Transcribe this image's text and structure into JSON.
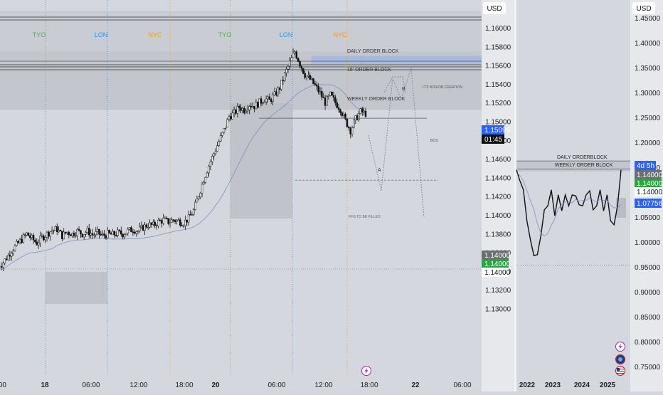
{
  "left_pane": {
    "currency_label": "USD",
    "price_ticks": [
      "1.16000",
      "1.15800",
      "1.15600",
      "1.15400",
      "1.15200",
      "1.15000",
      "1.14800",
      "1.14600",
      "1.14400",
      "1.14200",
      "1.14000",
      "1.13800",
      "1.13600",
      "1.13400",
      "1.13200",
      "1.13000"
    ],
    "time_labels": [
      ":00",
      "18",
      "06:00",
      "12:00",
      "18:00",
      "20",
      "06:00",
      "12:00",
      "18:00",
      "22",
      "06:00"
    ],
    "session_labels": [
      {
        "text": "TYO",
        "color": "#4caf50"
      },
      {
        "text": "LON",
        "color": "#2196f3"
      },
      {
        "text": "NYC",
        "color": "#ff9800"
      },
      {
        "text": "TYO",
        "color": "#4caf50"
      },
      {
        "text": "LON",
        "color": "#2196f3"
      },
      {
        "text": "NYC",
        "color": "#ff9800"
      }
    ],
    "annotations": {
      "daily_order_block": "DAILY ORDER BLOCK",
      "order_block_15": "15' ORDER BLOCK",
      "ltf_bos": "LTF BOS/OB CREATION",
      "weekly_order_block": "WEEKLY ORDER BLOCK",
      "bos": "BOS",
      "path_a": "A",
      "path_b": "B",
      "ffg": "FFG TO BE FILLED"
    },
    "badges": {
      "current_price": "1.15099",
      "countdown": "01:45",
      "grey": "1.14000",
      "green": "1.14000",
      "white": "1.14000"
    }
  },
  "right_pane": {
    "currency_label": "USD",
    "price_ticks": [
      "1.45000",
      "1.40000",
      "1.35000",
      "1.30000",
      "1.25000",
      "1.20000",
      "1.15000",
      "1.10000",
      "1.05000",
      "1.00000",
      "0.95000",
      "0.90000",
      "0.85000",
      "0.80000",
      "0.75000"
    ],
    "year_labels": [
      "2022",
      "2023",
      "2024",
      "2025"
    ],
    "annotations": {
      "daily_orderblock": "DAILY ORDERBLOCK",
      "weekly_order_block": "WEEKLY ORDER BLOCK"
    },
    "badges": {
      "countdown": "4d 5h",
      "grey": "1.14000",
      "green": "1.14000",
      "white": "1.14000",
      "blue": "1.07756"
    }
  },
  "colors": {
    "background": "#d3d6dc",
    "candle": "#111111",
    "tyo": "#4caf50",
    "lon": "#2196f3",
    "nyc": "#ff9800",
    "accent_blue": "#2962ff",
    "green_badge": "#26a641"
  },
  "chart_data": [
    {
      "type": "candlestick",
      "symbol_currency": "USD",
      "timeframe_note": "intraday",
      "ylim": [
        1.129,
        1.163
      ],
      "price_path": [
        1.1345,
        1.1352,
        1.136,
        1.1366,
        1.1372,
        1.1378,
        1.1373,
        1.1368,
        1.1374,
        1.1378,
        1.1382,
        1.1383,
        1.1376,
        1.138,
        1.1378,
        1.1381,
        1.1378,
        1.1381,
        1.1377,
        1.1379,
        1.1376,
        1.1378,
        1.1377,
        1.1379,
        1.1378,
        1.1381,
        1.1383,
        1.1381,
        1.1385,
        1.1388,
        1.1387,
        1.1391,
        1.1393,
        1.1391,
        1.1393,
        1.1392,
        1.139,
        1.1395,
        1.1403,
        1.142,
        1.1437,
        1.1452,
        1.1465,
        1.1478,
        1.149,
        1.1505,
        1.1508,
        1.1515,
        1.1512,
        1.1518,
        1.1516,
        1.152,
        1.1524,
        1.1522,
        1.1528,
        1.1536,
        1.155,
        1.1563,
        1.1575,
        1.1562,
        1.155,
        1.1545,
        1.1538,
        1.153,
        1.152,
        1.1528,
        1.152,
        1.1513,
        1.15,
        1.149,
        1.1502,
        1.151,
        1.1508
      ],
      "zones": [
        {
          "label": "DAILY ORDER BLOCK",
          "low": 1.1575,
          "high": 1.1619
        },
        {
          "label": "15' ORDER BLOCK",
          "low": 1.1564,
          "high": 1.1568
        },
        {
          "label": "WEEKLY ORDER BLOCK",
          "low": 1.1512,
          "high": 1.1575
        }
      ],
      "levels": {
        "bos": 1.1503,
        "ffg": 1.1436,
        "support": 1.134,
        "current": 1.15099,
        "marker": 1.14
      }
    },
    {
      "type": "line",
      "x_labels": [
        "2022",
        "2023",
        "2024",
        "2025"
      ],
      "ylim": [
        0.72,
        1.46
      ],
      "values": [
        1.14,
        1.13,
        1.1,
        1.05,
        1.0,
        0.98,
        0.97,
        1.02,
        1.06,
        1.08,
        1.1,
        1.06,
        1.09,
        1.07,
        1.09,
        1.08,
        1.09,
        1.1,
        1.07,
        1.08,
        1.09,
        1.11,
        1.06,
        1.08,
        1.1,
        1.07,
        1.09,
        1.05,
        1.03,
        1.08,
        1.14
      ],
      "levels": {
        "blue": 1.07756,
        "bottom": 0.955,
        "daily": 1.164,
        "weekly": 1.148
      }
    }
  ]
}
